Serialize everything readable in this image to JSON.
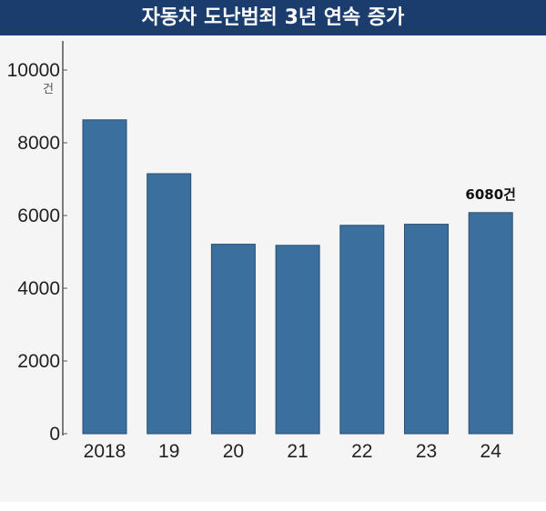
{
  "chart_data": {
    "type": "bar",
    "title": "자동차 도난범죄 3년 연속 증가",
    "categories": [
      "2018",
      "19",
      "20",
      "21",
      "22",
      "23",
      "24"
    ],
    "values": [
      8630,
      7150,
      5210,
      5180,
      5730,
      5760,
      6080
    ],
    "ylim": [
      0,
      10000
    ],
    "yticks": [
      0,
      2000,
      4000,
      6000,
      8000,
      10000
    ],
    "y_unit": "건",
    "xlabel": "",
    "ylabel": "",
    "annotations": [
      {
        "category": "24",
        "text": "6080건"
      }
    ],
    "bar_color": "#3b6f9e",
    "grid": false
  }
}
